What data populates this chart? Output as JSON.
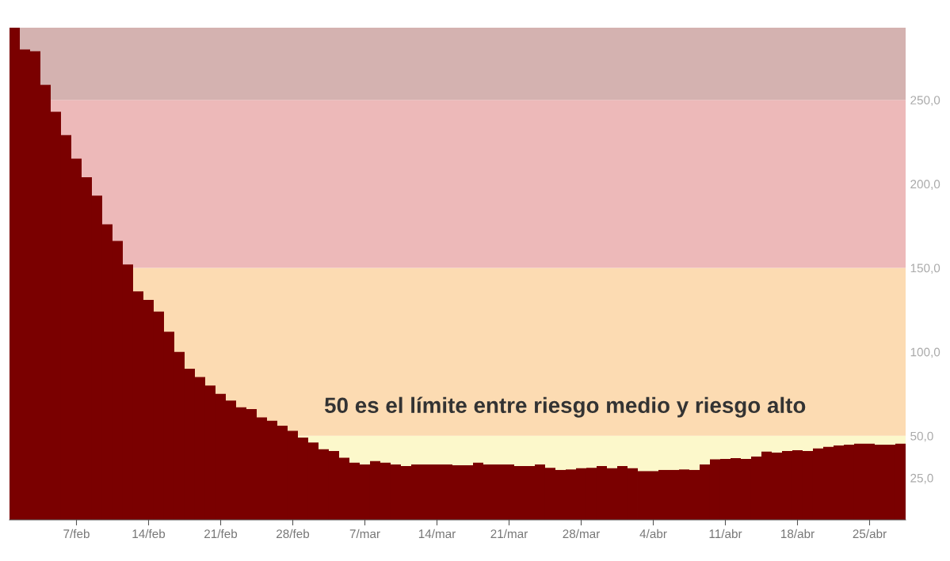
{
  "chart_data": {
    "type": "bar",
    "color": "#7a0000",
    "categories": [
      null,
      null,
      null,
      null,
      null,
      null,
      "7/feb",
      null,
      null,
      null,
      null,
      null,
      null,
      "14/feb",
      null,
      null,
      null,
      null,
      null,
      null,
      "21/feb",
      null,
      null,
      null,
      null,
      null,
      null,
      "28/feb",
      null,
      null,
      null,
      null,
      null,
      null,
      "7/mar",
      null,
      null,
      null,
      null,
      null,
      null,
      "14/mar",
      null,
      null,
      null,
      null,
      null,
      null,
      "21/mar",
      null,
      null,
      null,
      null,
      null,
      null,
      "28/mar",
      null,
      null,
      null,
      null,
      null,
      null,
      "4/abr",
      null,
      null,
      null,
      null,
      null,
      null,
      "11/abr",
      null,
      null,
      null,
      null,
      null,
      null,
      "18/abr",
      null,
      null,
      null,
      null,
      null,
      null,
      "25/abr",
      null,
      null,
      null
    ],
    "values": [
      293,
      280,
      279,
      259,
      243,
      229,
      215,
      204,
      193,
      176,
      166,
      152,
      136,
      131,
      124,
      112,
      100,
      90,
      85,
      80,
      75,
      71,
      67,
      66,
      61,
      59,
      56,
      53,
      49,
      46,
      42,
      41,
      37,
      34,
      33,
      35,
      34,
      33,
      32,
      33,
      33,
      33,
      33,
      32.5,
      32.5,
      34,
      33,
      33,
      33,
      32,
      32,
      33,
      31,
      29.7,
      30,
      30.7,
      31,
      32,
      30.7,
      32,
      30.7,
      29,
      29,
      29.7,
      29.7,
      30,
      29.7,
      33,
      36,
      36.3,
      36.8,
      36.3,
      37.7,
      40.6,
      40,
      41,
      41.5,
      41,
      42.5,
      43.4,
      44.3,
      44.8,
      45.3,
      45.3,
      44.8,
      44.8,
      45.3
    ],
    "ylim": [
      0,
      293
    ],
    "yticks": [
      {
        "value": 25,
        "label": "25,0"
      },
      {
        "value": 50,
        "label": "50,0"
      },
      {
        "value": 100,
        "label": "100,0"
      },
      {
        "value": 150,
        "label": "150,0"
      },
      {
        "value": 200,
        "label": "200,0"
      },
      {
        "value": 250,
        "label": "250,0"
      }
    ],
    "bands": [
      {
        "axis": "y",
        "from": 0,
        "to": 50,
        "color": "#fcf8cb"
      },
      {
        "axis": "y",
        "from": 50,
        "to": 150,
        "color": "#fcdbb2"
      },
      {
        "axis": "y",
        "from": 150,
        "to": 250,
        "color": "#edb9b9"
      },
      {
        "axis": "y",
        "from": 250,
        "to": 293,
        "color": "#d4b2b0"
      }
    ],
    "annotations": [
      "50 es el límite entre riesgo medio y riesgo alto"
    ],
    "grid": false,
    "legend": false
  }
}
